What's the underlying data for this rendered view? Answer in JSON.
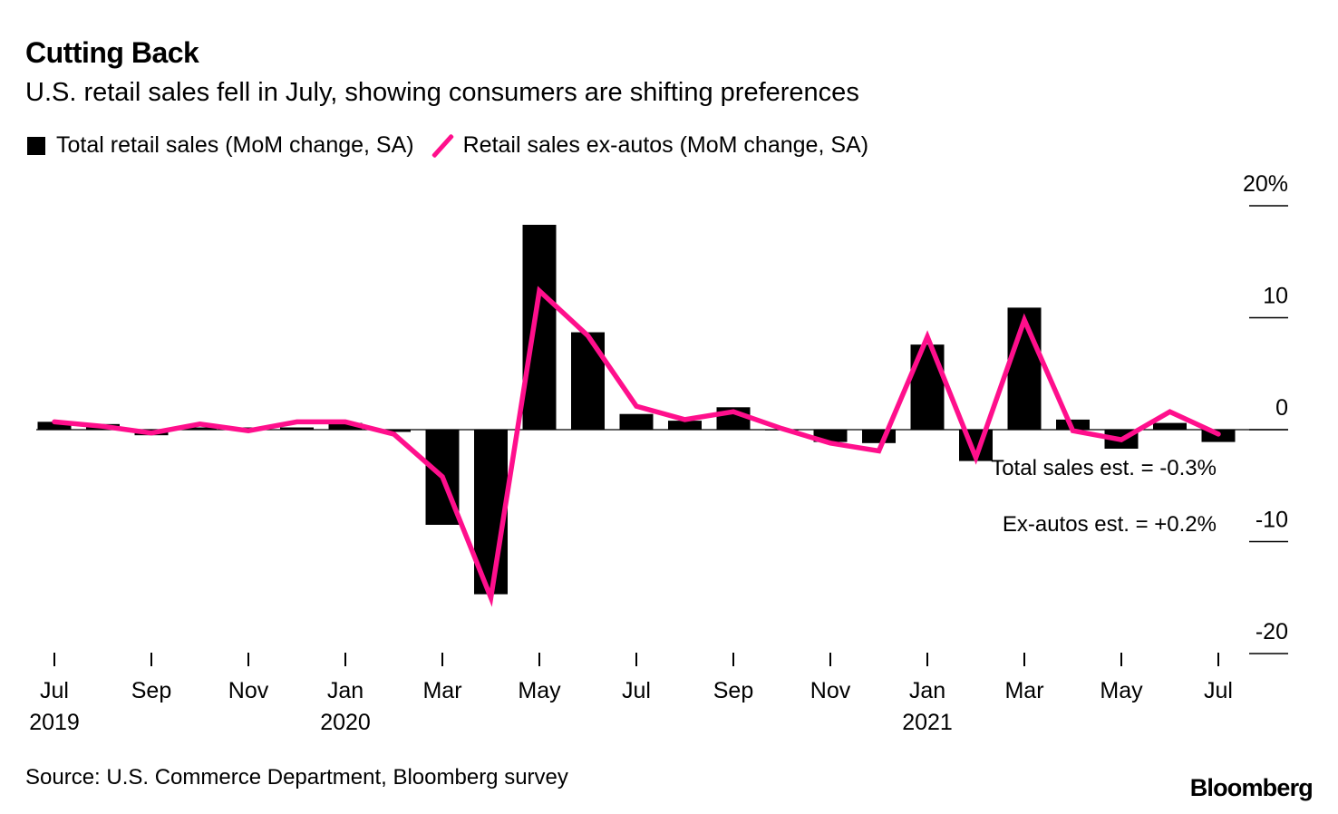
{
  "chart_data": {
    "type": "bar",
    "title": "Cutting Back",
    "subtitle": "U.S. retail sales fell in July, showing consumers are shifting preferences",
    "legend": [
      {
        "name": "Total retail sales (MoM change, SA)",
        "color": "#000000"
      },
      {
        "name": "Retail sales ex-autos (MoM change, SA)",
        "color": "#ff0f8c"
      }
    ],
    "categories": [
      "Jul 2019",
      "Aug 2019",
      "Sep 2019",
      "Oct 2019",
      "Nov 2019",
      "Dec 2019",
      "Jan 2020",
      "Feb 2020",
      "Mar 2020",
      "Apr 2020",
      "May 2020",
      "Jun 2020",
      "Jul 2020",
      "Aug 2020",
      "Sep 2020",
      "Oct 2020",
      "Nov 2020",
      "Dec 2020",
      "Jan 2021",
      "Feb 2021",
      "Mar 2021",
      "Apr 2021",
      "May 2021",
      "Jun 2021",
      "Jul 2021"
    ],
    "series": [
      {
        "name": "Total retail sales (MoM change, SA)",
        "type": "bar",
        "values": [
          0.7,
          0.5,
          -0.5,
          0.2,
          0.2,
          0.2,
          0.6,
          -0.2,
          -8.5,
          -14.7,
          18.3,
          8.7,
          1.4,
          0.8,
          2.0,
          0.0,
          -1.1,
          -1.2,
          7.6,
          -2.8,
          10.9,
          0.9,
          -1.7,
          0.6,
          -1.1
        ]
      },
      {
        "name": "Retail sales ex-autos (MoM change, SA)",
        "type": "line",
        "values": [
          0.7,
          0.3,
          -0.3,
          0.5,
          -0.1,
          0.7,
          0.7,
          -0.4,
          -4.2,
          -15.0,
          12.4,
          8.4,
          2.1,
          0.9,
          1.6,
          0.1,
          -1.2,
          -1.9,
          8.3,
          -2.5,
          9.8,
          -0.1,
          -0.9,
          1.6,
          -0.4
        ]
      }
    ],
    "x_ticks": [
      {
        "index": 0,
        "label": "Jul",
        "year": "2019"
      },
      {
        "index": 2,
        "label": "Sep",
        "year": ""
      },
      {
        "index": 4,
        "label": "Nov",
        "year": ""
      },
      {
        "index": 6,
        "label": "Jan",
        "year": "2020"
      },
      {
        "index": 8,
        "label": "Mar",
        "year": ""
      },
      {
        "index": 10,
        "label": "May",
        "year": ""
      },
      {
        "index": 12,
        "label": "Jul",
        "year": ""
      },
      {
        "index": 14,
        "label": "Sep",
        "year": ""
      },
      {
        "index": 16,
        "label": "Nov",
        "year": ""
      },
      {
        "index": 18,
        "label": "Jan",
        "year": "2021"
      },
      {
        "index": 20,
        "label": "Mar",
        "year": ""
      },
      {
        "index": 22,
        "label": "May",
        "year": ""
      },
      {
        "index": 24,
        "label": "Jul",
        "year": ""
      }
    ],
    "y_ticks": [
      {
        "value": 20,
        "label": "20%"
      },
      {
        "value": 10,
        "label": "10"
      },
      {
        "value": 0,
        "label": "0"
      },
      {
        "value": -10,
        "label": "-10"
      },
      {
        "value": -20,
        "label": "-20"
      }
    ],
    "ylim": [
      -20,
      20
    ],
    "annotations": [
      "Total sales est. = -0.3%",
      "Ex-autos est. = +0.2%"
    ],
    "xlabel": "",
    "ylabel": ""
  },
  "source": "Source: U.S. Commerce Department, Bloomberg survey",
  "brand": "Bloomberg"
}
